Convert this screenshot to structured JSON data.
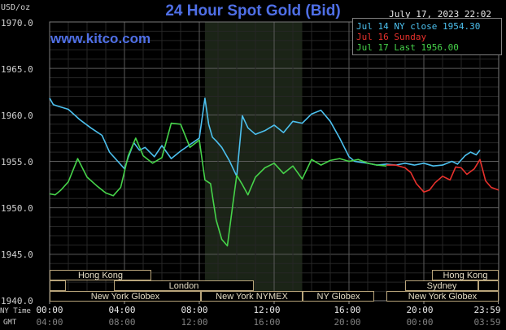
{
  "header": {
    "unit": "USD/oz",
    "title": "24 Hour Spot Gold (Bid)",
    "timestamp": "July 17, 2023 22:02",
    "website": "www.kitco.com"
  },
  "axis_labels": {
    "ny_time": "NY Time",
    "gmt": "GMT"
  },
  "sessions": [
    {
      "name": "Hong Kong"
    },
    {
      "name": "London"
    },
    {
      "name": "New York Globex"
    },
    {
      "name": "New York NYMEX"
    },
    {
      "name": "NY Globex"
    },
    {
      "name": "Hong Kong"
    },
    {
      "name": "Sydney"
    },
    {
      "name": "New York Globex"
    }
  ],
  "chart_data": {
    "type": "line",
    "title": "24 Hour Spot Gold (Bid)",
    "ylabel": "USD/oz",
    "ylim": [
      1940.0,
      1970.0
    ],
    "xlim": [
      0,
      24
    ],
    "y_ticks": [
      "1940.0",
      "1945.0",
      "1950.0",
      "1955.0",
      "1960.0",
      "1965.0",
      "1970.0"
    ],
    "x_ticks_ny": [
      "00:00",
      "04:00",
      "08:00",
      "12:00",
      "16:00",
      "20:00",
      "23:59"
    ],
    "x_ticks_gmt": [
      "04:00",
      "08:00",
      "12:00",
      "16:00",
      "20:00",
      "00:00",
      "03:59"
    ],
    "x_tick_hours": [
      0,
      4,
      8,
      12,
      16,
      20,
      23.98
    ],
    "grid": true,
    "legend_position": "top-right",
    "highlight_hours": [
      8.3,
      13.5
    ],
    "highlight_color": "#1b2417",
    "series": [
      {
        "name": "Jul 14 NY close 1954.30",
        "color": "#4cc0ee",
        "x": [
          0,
          0.2,
          0.5,
          1.0,
          1.6,
          2.2,
          2.8,
          3.2,
          3.6,
          4.0,
          4.2,
          4.5,
          4.8,
          5.1,
          5.6,
          6.0,
          6.5,
          7.0,
          7.5,
          8.0,
          8.3,
          8.5,
          8.7,
          8.9,
          9.2,
          9.6,
          10.0,
          10.3,
          10.6,
          11.0,
          11.5,
          12.0,
          12.5,
          13.0,
          13.5,
          14.0,
          14.5,
          15.0,
          15.5,
          16.0,
          16.3,
          16.6,
          17.0,
          17.5,
          18.0,
          18.5,
          19.0,
          19.5,
          20.0,
          20.5,
          21.0,
          21.5,
          21.8,
          22.2,
          22.5,
          22.8,
          23.0
        ],
        "y": [
          1961.8,
          1961.1,
          1960.9,
          1960.6,
          1959.5,
          1958.6,
          1957.8,
          1956.0,
          1955.1,
          1954.2,
          1955.4,
          1957.0,
          1956.2,
          1956.5,
          1955.5,
          1956.7,
          1955.3,
          1956.1,
          1956.8,
          1957.5,
          1961.8,
          1959.0,
          1957.6,
          1957.2,
          1956.5,
          1955.1,
          1953.4,
          1959.9,
          1958.6,
          1957.9,
          1958.3,
          1958.9,
          1958.1,
          1959.3,
          1959.1,
          1960.1,
          1960.5,
          1959.3,
          1957.5,
          1955.5,
          1955.0,
          1954.9,
          1954.8,
          1954.6,
          1954.7,
          1954.6,
          1954.8,
          1954.6,
          1954.8,
          1954.5,
          1954.6,
          1955.0,
          1954.7,
          1955.6,
          1956.0,
          1955.7,
          1956.2
        ]
      },
      {
        "name": "Jul 16 Sunday",
        "color": "#e8312c",
        "x": [
          18.0,
          18.5,
          19.0,
          19.3,
          19.6,
          20.0,
          20.3,
          20.6,
          21.0,
          21.4,
          21.7,
          22.0,
          22.3,
          22.7,
          23.0,
          23.3,
          23.6,
          24.0
        ],
        "y": [
          1954.6,
          1954.6,
          1954.3,
          1953.8,
          1952.6,
          1951.7,
          1951.9,
          1952.7,
          1953.4,
          1953.0,
          1954.4,
          1954.3,
          1953.6,
          1954.2,
          1955.2,
          1952.9,
          1952.2,
          1951.9
        ]
      },
      {
        "name": "Jul 17 Last 1956.00",
        "color": "#46d34a",
        "x": [
          0,
          0.3,
          0.6,
          1.0,
          1.5,
          2.0,
          2.5,
          3.0,
          3.4,
          3.8,
          4.2,
          4.6,
          5.0,
          5.5,
          6.0,
          6.5,
          7.0,
          7.5,
          8.0,
          8.3,
          8.6,
          8.9,
          9.2,
          9.5,
          9.8,
          10.0,
          10.3,
          10.6,
          11.0,
          11.5,
          12.0,
          12.5,
          13.0,
          13.5,
          14.0,
          14.5,
          15.0,
          15.5,
          16.0,
          16.5,
          17.0,
          17.5,
          18.0
        ],
        "y": [
          1951.5,
          1951.4,
          1951.9,
          1952.8,
          1955.3,
          1953.3,
          1952.4,
          1951.6,
          1951.3,
          1952.2,
          1955.6,
          1957.5,
          1955.6,
          1954.8,
          1955.4,
          1959.1,
          1959.0,
          1956.5,
          1957.3,
          1953.0,
          1952.6,
          1948.7,
          1946.6,
          1945.9,
          1950.5,
          1953.5,
          1952.5,
          1951.4,
          1953.3,
          1954.3,
          1954.8,
          1953.7,
          1954.5,
          1953.1,
          1955.2,
          1954.6,
          1955.1,
          1955.3,
          1955.0,
          1955.2,
          1954.8,
          1954.6,
          1954.5
        ]
      }
    ]
  }
}
